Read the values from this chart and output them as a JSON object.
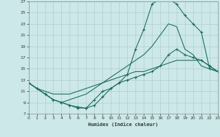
{
  "xlabel": "Humidex (Indice chaleur)",
  "bg_color": "#cce8e8",
  "grid_color": "#b0cccc",
  "line_color": "#1a6b5a",
  "xlim": [
    0,
    23
  ],
  "ylim": [
    7,
    27
  ],
  "xticks": [
    0,
    1,
    2,
    3,
    4,
    5,
    6,
    7,
    8,
    9,
    10,
    11,
    12,
    13,
    14,
    15,
    16,
    17,
    18,
    19,
    20,
    21,
    22,
    23
  ],
  "yticks": [
    7,
    9,
    11,
    13,
    15,
    17,
    19,
    21,
    23,
    25,
    27
  ],
  "line1": {
    "x": [
      0,
      1,
      2,
      3,
      4,
      5,
      6,
      7,
      8,
      9,
      10,
      11,
      12,
      13,
      14,
      15,
      16,
      17,
      18,
      19,
      20,
      21,
      22,
      23
    ],
    "y": [
      12.5,
      11.5,
      10.5,
      9.5,
      9.0,
      8.5,
      8.0,
      8.0,
      8.5,
      10.0,
      11.5,
      12.5,
      14.0,
      18.5,
      22.0,
      26.5,
      27.5,
      27.5,
      26.5,
      24.5,
      23.0,
      21.5,
      15.0,
      14.5
    ],
    "marker": true
  },
  "line2": {
    "x": [
      0,
      1,
      2,
      3,
      4,
      5,
      6,
      7,
      8,
      9,
      10,
      11,
      12,
      13,
      14,
      15,
      16,
      17,
      18,
      19,
      20,
      21,
      22,
      23
    ],
    "y": [
      12.5,
      11.5,
      10.5,
      9.5,
      9.0,
      9.5,
      10.0,
      10.5,
      11.5,
      12.5,
      13.5,
      14.5,
      15.5,
      16.5,
      17.5,
      19.0,
      21.0,
      23.0,
      22.5,
      18.5,
      17.5,
      15.5,
      15.0,
      14.5
    ],
    "marker": false
  },
  "line3": {
    "x": [
      0,
      1,
      2,
      3,
      4,
      5,
      6,
      7,
      8,
      9,
      10,
      11,
      12,
      13,
      14,
      15,
      16,
      17,
      18,
      19,
      20,
      21,
      22,
      23
    ],
    "y": [
      12.5,
      11.5,
      10.5,
      9.5,
      9.0,
      8.5,
      8.2,
      8.0,
      9.5,
      11.0,
      11.5,
      12.5,
      13.0,
      13.5,
      14.0,
      14.5,
      15.5,
      17.5,
      18.5,
      17.5,
      17.0,
      16.5,
      15.5,
      14.5
    ],
    "marker": true
  },
  "line4": {
    "x": [
      0,
      1,
      2,
      3,
      4,
      5,
      6,
      7,
      8,
      9,
      10,
      11,
      12,
      13,
      14,
      15,
      16,
      17,
      18,
      19,
      20,
      21,
      22,
      23
    ],
    "y": [
      12.5,
      11.5,
      11.0,
      10.5,
      10.5,
      10.5,
      11.0,
      11.5,
      12.0,
      12.5,
      13.0,
      13.5,
      14.0,
      14.5,
      14.5,
      15.0,
      15.5,
      16.0,
      16.5,
      16.5,
      16.5,
      16.5,
      15.5,
      14.5
    ],
    "marker": false
  }
}
